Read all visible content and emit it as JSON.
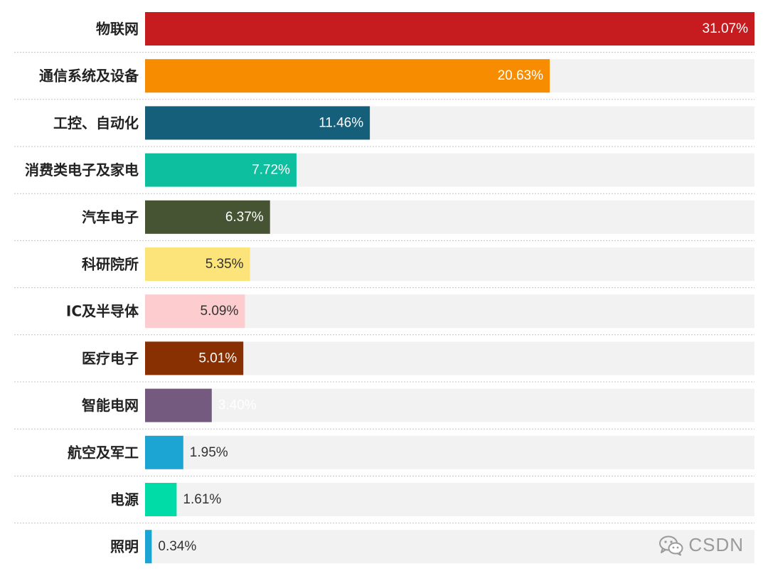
{
  "chart_data": {
    "type": "bar",
    "orientation": "horizontal",
    "categories": [
      "物联网",
      "通信系统及设备",
      "工控、自动化",
      "消费类电子及家电",
      "汽车电子",
      "科研院所",
      "IC及半导体",
      "医疗电子",
      "智能电网",
      "航空及军工",
      "电源",
      "照明"
    ],
    "values": [
      31.07,
      20.63,
      11.46,
      7.72,
      6.37,
      5.35,
      5.09,
      5.01,
      3.4,
      1.95,
      1.61,
      0.34
    ],
    "value_labels": [
      "31.07%",
      "20.63%",
      "11.46%",
      "7.72%",
      "6.37%",
      "5.35%",
      "5.09%",
      "5.01%",
      "3.40%",
      "1.95%",
      "1.61%",
      "0.34%"
    ],
    "colors": [
      "#c71c1f",
      "#f78c00",
      "#155f7a",
      "#0dbf9f",
      "#465434",
      "#fde47a",
      "#fccccf",
      "#883001",
      "#745a7e",
      "#1ca4d2",
      "#00dca7",
      "#1ca4d2"
    ],
    "label_colors": [
      "#ffffff",
      "#ffffff",
      "#ffffff",
      "#ffffff",
      "#ffffff",
      "#333333",
      "#333333",
      "#ffffff",
      "#ffffff",
      "#333333",
      "#333333",
      "#333333"
    ],
    "xlim": [
      0,
      31.07
    ],
    "track_color": "#f2f2f2",
    "grid": false,
    "legend": "none"
  },
  "watermark": {
    "text": "CSDN",
    "icon": "wechat-icon"
  }
}
